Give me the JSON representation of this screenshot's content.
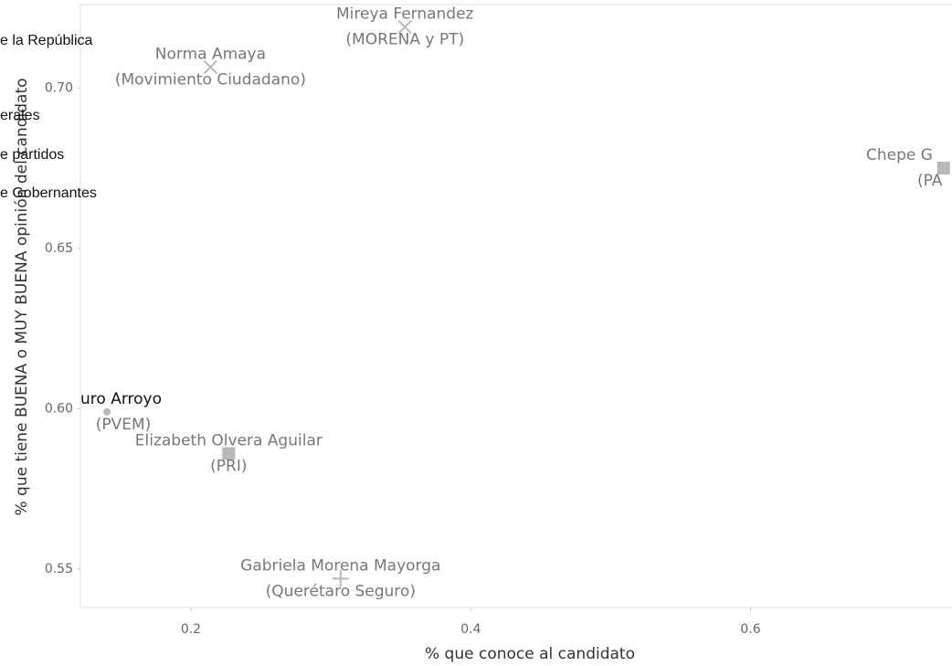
{
  "chart_data": {
    "type": "scatter",
    "x_label": "% que conoce al candidato",
    "y_label": "% que tiene BUENA o MUY BUENA opinión del candidato",
    "xlim": [
      0.121,
      0.744
    ],
    "xticks": [
      0.2,
      0.4,
      0.6
    ],
    "ylim": [
      0.538,
      0.726
    ],
    "yticks": [
      {
        "value": 0.7,
        "label": "0.70"
      },
      0.65,
      {
        "value": 0.6,
        "label": "0.60"
      },
      0.55
    ],
    "color": "#b8b8b8",
    "points": [
      {
        "name": "Mireya Fernandez",
        "party": "(MORENA y PT)",
        "x": 0.353,
        "y": 0.719,
        "symbol": "x"
      },
      {
        "name": "Norma Amaya",
        "party": "(Movimiento Ciudadano)",
        "x": 0.214,
        "y": 0.7065,
        "symbol": "x"
      },
      {
        "name": "Chepe G",
        "party": "(PA",
        "x": 0.738,
        "y": 0.675,
        "symbol": "square"
      },
      {
        "name": "uro Arroyo",
        "party": "(PVEM)",
        "x": 0.14,
        "y": 0.599,
        "symbol": "circle"
      },
      {
        "name": "Elizabeth Olvera Aguilar",
        "party": "(PRI)",
        "x": 0.227,
        "y": 0.586,
        "symbol": "square"
      },
      {
        "name": "Gabriela Morena Mayorga",
        "party": "(Querétaro Seguro)",
        "x": 0.307,
        "y": 0.547,
        "symbol": "plus"
      }
    ],
    "menu_fragments": [
      "e la República",
      "erales",
      "e partidos",
      "e Gobernantes"
    ]
  }
}
